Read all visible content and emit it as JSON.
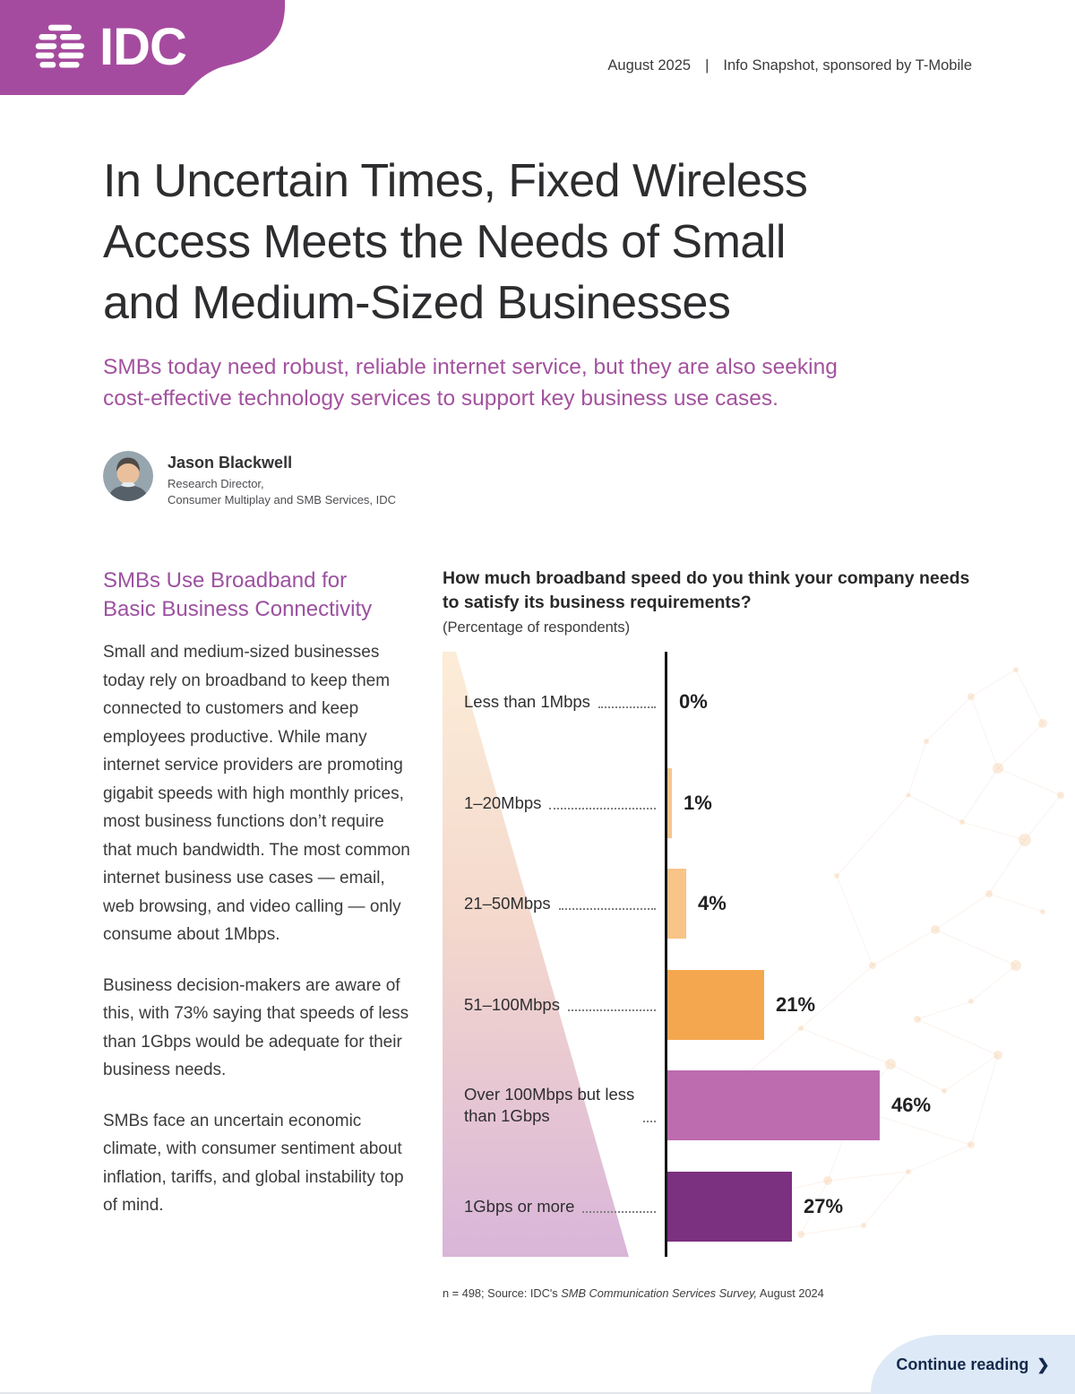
{
  "header": {
    "brand": "IDC",
    "date": "August 2025",
    "separator": "|",
    "tagline": "Info Snapshot, sponsored by T-Mobile"
  },
  "title_lines": [
    "In Uncertain Times, Fixed Wireless",
    "Access Meets the Needs of Small",
    "and Medium-Sized Businesses"
  ],
  "subtitle_lines": [
    "SMBs today need robust, reliable internet service, but they are also seeking",
    "cost-effective technology services to support key business use cases."
  ],
  "author": {
    "name": "Jason Blackwell",
    "role_line1": "Research Director,",
    "role_line2": "Consumer Multiplay and SMB Services, IDC"
  },
  "article": {
    "heading_lines": [
      "SMBs Use Broadband for",
      "Basic Business Connectivity"
    ],
    "paragraphs": [
      "Small and medium-sized businesses today rely on broadband to keep them connected to customers and keep employees productive. While many internet service providers are promoting gigabit speeds with high monthly prices, most business functions don’t require that much bandwidth. The most common internet business use cases — email, web browsing, and video calling — only consume about 1Mbps.",
      "Business decision-makers are aware of this, with 73% saying that speeds of less than 1Gbps would be adequate for their business needs.",
      "SMBs face an uncertain economic climate, with consumer sentiment about inflation, tariffs, and global instability top of mind."
    ]
  },
  "chart_data": {
    "type": "bar",
    "orientation": "horizontal",
    "title": "How much broadband speed do you think your company needs to satisfy its business requirements?",
    "subtitle": "(Percentage of respondents)",
    "categories": [
      "Less than 1Mbps",
      "1–20Mbps",
      "21–50Mbps",
      "51–100Mbps",
      "Over 100Mbps but less than 1Gbps",
      "1Gbps or more"
    ],
    "values": [
      0,
      1,
      4,
      21,
      46,
      27
    ],
    "value_labels": [
      "0%",
      "1%",
      "4%",
      "21%",
      "46%",
      "27%"
    ],
    "bar_colors": [
      "#F6C68F",
      "#F6C68F",
      "#F8C487",
      "#F5A74F",
      "#BC6CAF",
      "#7B3080"
    ],
    "xlim": [
      0,
      50
    ],
    "grid": false,
    "legend": "none"
  },
  "footnote": {
    "prefix": "n = 498; Source: IDC's ",
    "italic": "SMB Communication Services Survey,",
    "suffix": " August 2024"
  },
  "footer": {
    "continue_label": "Continue reading",
    "arrow": "❯"
  },
  "colors": {
    "brand_purple": "#A54B9F",
    "accent_purple": "#A3539E",
    "bar_orange": "#F5A74F",
    "bar_mauve": "#BC6CAF",
    "bar_dark_purple": "#7B3080",
    "tab_blue": "#DDE9F6",
    "tab_text": "#14294C"
  }
}
